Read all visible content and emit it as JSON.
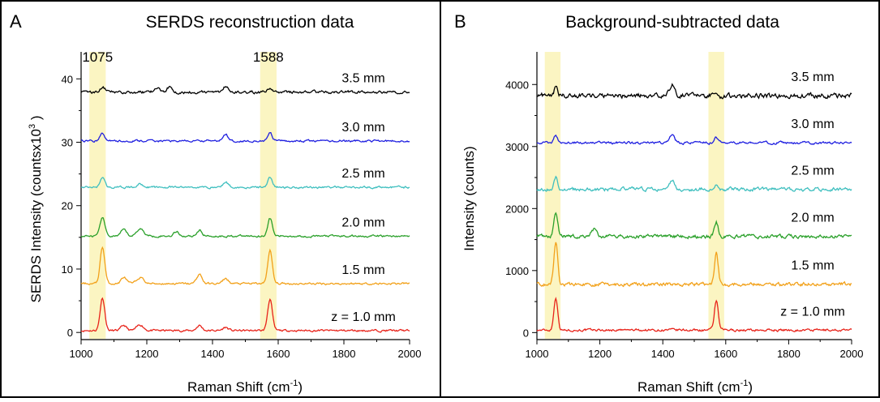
{
  "chart_data": [
    {
      "panel_letter": "A",
      "title": "SERDS reconstruction data",
      "type": "line",
      "xlabel": "Raman Shift (cm",
      "xlabel_sup": "-1",
      "xlabel_tail": ")",
      "ylabel": "SERDS Intensity (countsx10",
      "ylabel_sup": "3",
      "ylabel_tail": " )",
      "xlim": [
        1000,
        2000
      ],
      "ylim": [
        -1,
        44
      ],
      "x_ticks": [
        1000,
        1200,
        1400,
        1600,
        1800,
        2000
      ],
      "y_ticks": [
        0,
        10,
        20,
        30,
        40
      ],
      "highlight_bands": [
        [
          1025,
          1075
        ],
        [
          1545,
          1595
        ]
      ],
      "band_labels": [
        {
          "text": "1075",
          "x": 1050
        },
        {
          "text": "1588",
          "x": 1570
        }
      ],
      "series": [
        {
          "name": "z = 1.0 mm",
          "color": "#e8231a",
          "baseline": 0.3,
          "noise": 0.25,
          "peaks": [
            [
              1065,
              5.2,
              7
            ],
            [
              1575,
              5.0,
              7
            ],
            [
              1130,
              0.8,
              8
            ],
            [
              1180,
              0.9,
              10
            ],
            [
              1360,
              0.8,
              8
            ],
            [
              1440,
              0.5,
              8
            ]
          ]
        },
        {
          "name": "1.5 mm",
          "color": "#f2a11a",
          "baseline": 7.7,
          "noise": 0.25,
          "peaks": [
            [
              1065,
              5.8,
              7
            ],
            [
              1575,
              5.2,
              7
            ],
            [
              1130,
              1.0,
              8
            ],
            [
              1180,
              1.0,
              10
            ],
            [
              1360,
              1.5,
              8
            ],
            [
              1440,
              0.8,
              8
            ]
          ]
        },
        {
          "name": "2.0 mm",
          "color": "#2aa02a",
          "baseline": 15.2,
          "noise": 0.25,
          "peaks": [
            [
              1065,
              3.0,
              7
            ],
            [
              1575,
              2.8,
              7
            ],
            [
              1130,
              1.0,
              8
            ],
            [
              1180,
              1.2,
              10
            ],
            [
              1290,
              0.7,
              8
            ],
            [
              1360,
              0.9,
              8
            ]
          ]
        },
        {
          "name": "2.5 mm",
          "color": "#3fbfbf",
          "baseline": 22.9,
          "noise": 0.25,
          "peaks": [
            [
              1065,
              1.6,
              7
            ],
            [
              1575,
              1.6,
              7
            ],
            [
              1440,
              0.8,
              8
            ],
            [
              1180,
              0.5,
              10
            ]
          ]
        },
        {
          "name": "3.0 mm",
          "color": "#2020e0",
          "baseline": 30.2,
          "noise": 0.25,
          "peaks": [
            [
              1065,
              1.2,
              7
            ],
            [
              1575,
              1.2,
              7
            ],
            [
              1440,
              1.0,
              8
            ]
          ]
        },
        {
          "name": "3.5 mm",
          "color": "#000000",
          "baseline": 37.9,
          "noise": 0.35,
          "peaks": [
            [
              1065,
              0.8,
              7
            ],
            [
              1575,
              0.7,
              7
            ],
            [
              1440,
              1.0,
              8
            ],
            [
              1230,
              0.6,
              8
            ],
            [
              1270,
              0.9,
              8
            ]
          ]
        }
      ]
    },
    {
      "panel_letter": "B",
      "title": "Background-subtracted data",
      "type": "line",
      "xlabel": "Raman Shift (cm",
      "xlabel_sup": "-1",
      "xlabel_tail": ")",
      "ylabel": "Intensity (counts)",
      "xlim": [
        1000,
        2000
      ],
      "ylim": [
        -100,
        4500
      ],
      "x_ticks": [
        1000,
        1200,
        1400,
        1600,
        1800,
        2000
      ],
      "y_ticks": [
        0,
        1000,
        2000,
        3000,
        4000
      ],
      "highlight_bands": [
        [
          1025,
          1075
        ],
        [
          1545,
          1595
        ]
      ],
      "series": [
        {
          "name": "z = 1.0 mm",
          "color": "#e8231a",
          "baseline": 40,
          "noise": 30,
          "peaks": [
            [
              1060,
              530,
              6
            ],
            [
              1570,
              480,
              6
            ]
          ]
        },
        {
          "name": "1.5 mm",
          "color": "#f2a11a",
          "baseline": 780,
          "noise": 45,
          "peaks": [
            [
              1060,
              680,
              6
            ],
            [
              1570,
              500,
              6
            ]
          ]
        },
        {
          "name": "2.0 mm",
          "color": "#2aa02a",
          "baseline": 1550,
          "noise": 45,
          "peaks": [
            [
              1060,
              380,
              6
            ],
            [
              1570,
              230,
              6
            ],
            [
              1180,
              120,
              8
            ]
          ]
        },
        {
          "name": "2.5 mm",
          "color": "#3fbfbf",
          "baseline": 2310,
          "noise": 45,
          "peaks": [
            [
              1060,
              200,
              6
            ],
            [
              1430,
              150,
              8
            ],
            [
              1570,
              100,
              6
            ]
          ]
        },
        {
          "name": "3.0 mm",
          "color": "#2020e0",
          "baseline": 3060,
          "noise": 30,
          "peaks": [
            [
              1060,
              110,
              6
            ],
            [
              1430,
              120,
              8
            ],
            [
              1570,
              90,
              6
            ]
          ]
        },
        {
          "name": "3.5 mm",
          "color": "#000000",
          "baseline": 3820,
          "noise": 60,
          "peaks": [
            [
              1060,
              130,
              6
            ],
            [
              1430,
              200,
              8
            ],
            [
              1570,
              90,
              6
            ]
          ]
        }
      ]
    }
  ],
  "colors": {
    "highlight": "#fbf5c2",
    "axis": "#000000",
    "border": "#000000"
  }
}
